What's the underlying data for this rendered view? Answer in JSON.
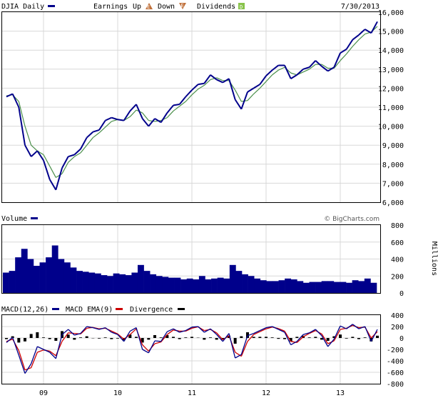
{
  "chart_data": [
    {
      "type": "line",
      "panel": "price",
      "symbol_label": "DJIA Daily",
      "date_label": "7/30/2013",
      "legend": {
        "earnings_label": "Earnings",
        "up_label": "Up",
        "down_label": "Down",
        "dividends_label": "Dividends",
        "up_badge": "E",
        "down_badge": "E",
        "dividends_badge": "D"
      },
      "ylim": [
        6000,
        16000
      ],
      "y_ticks": [
        "6,000",
        "7,000",
        "8,000",
        "9,000",
        "10,000",
        "11,000",
        "12,000",
        "13,000",
        "14,000",
        "15,000",
        "16,000"
      ],
      "series": [
        {
          "color": "#00008b",
          "x": [
            "2008-07",
            "2008-08",
            "2008-09",
            "2008-10",
            "2008-11",
            "2008-12",
            "2009-01",
            "2009-02",
            "2009-03",
            "2009-04",
            "2009-05",
            "2009-06",
            "2009-07",
            "2009-08",
            "2009-09",
            "2009-10",
            "2009-11",
            "2009-12",
            "2010-01",
            "2010-02",
            "2010-03",
            "2010-04",
            "2010-05",
            "2010-06",
            "2010-07",
            "2010-08",
            "2010-09",
            "2010-10",
            "2010-11",
            "2010-12",
            "2011-01",
            "2011-02",
            "2011-03",
            "2011-04",
            "2011-05",
            "2011-06",
            "2011-07",
            "2011-08",
            "2011-09",
            "2011-10",
            "2011-11",
            "2011-12",
            "2012-01",
            "2012-02",
            "2012-03",
            "2012-04",
            "2012-05",
            "2012-06",
            "2012-07",
            "2012-08",
            "2012-09",
            "2012-10",
            "2012-11",
            "2012-12",
            "2013-01",
            "2013-02",
            "2013-03",
            "2013-04",
            "2013-05",
            "2013-06",
            "2013-07"
          ],
          "values": [
            11550,
            11700,
            11000,
            9000,
            8400,
            8700,
            8200,
            7200,
            6650,
            7800,
            8400,
            8500,
            8800,
            9400,
            9700,
            9800,
            10300,
            10450,
            10350,
            10300,
            10800,
            11150,
            10400,
            10000,
            10400,
            10200,
            10700,
            11100,
            11150,
            11550,
            11900,
            12200,
            12250,
            12700,
            12450,
            12300,
            12500,
            11400,
            10900,
            11800,
            12000,
            12200,
            12650,
            12950,
            13200,
            13200,
            12500,
            12700,
            13000,
            13100,
            13450,
            13150,
            12900,
            13100,
            13850,
            14050,
            14550,
            14800,
            15100,
            14900,
            15500
          ]
        },
        {
          "color": "#4a8f4a",
          "x": [
            "2008-07",
            "2008-08",
            "2008-09",
            "2008-10",
            "2008-11",
            "2008-12",
            "2009-01",
            "2009-02",
            "2009-03",
            "2009-04",
            "2009-05",
            "2009-06",
            "2009-07",
            "2009-08",
            "2009-09",
            "2009-10",
            "2009-11",
            "2009-12",
            "2010-01",
            "2010-02",
            "2010-03",
            "2010-04",
            "2010-05",
            "2010-06",
            "2010-07",
            "2010-08",
            "2010-09",
            "2010-10",
            "2010-11",
            "2010-12",
            "2011-01",
            "2011-02",
            "2011-03",
            "2011-04",
            "2011-05",
            "2011-06",
            "2011-07",
            "2011-08",
            "2011-09",
            "2011-10",
            "2011-11",
            "2011-12",
            "2012-01",
            "2012-02",
            "2012-03",
            "2012-04",
            "2012-05",
            "2012-06",
            "2012-07",
            "2012-08",
            "2012-09",
            "2012-10",
            "2012-11",
            "2012-12",
            "2013-01",
            "2013-02",
            "2013-03",
            "2013-04",
            "2013-05",
            "2013-06",
            "2013-07"
          ],
          "values": [
            11600,
            11650,
            11300,
            10000,
            9000,
            8700,
            8500,
            7900,
            7300,
            7500,
            8100,
            8400,
            8600,
            9000,
            9400,
            9650,
            9950,
            10250,
            10350,
            10300,
            10500,
            10850,
            10700,
            10300,
            10250,
            10300,
            10450,
            10800,
            11050,
            11300,
            11650,
            11950,
            12150,
            12450,
            12550,
            12400,
            12400,
            11900,
            11300,
            11350,
            11700,
            12000,
            12350,
            12700,
            12950,
            13100,
            12800,
            12700,
            12850,
            13000,
            13250,
            13250,
            13050,
            13050,
            13450,
            13800,
            14200,
            14550,
            14850,
            14950,
            15250
          ]
        }
      ]
    },
    {
      "type": "bar",
      "panel": "volume",
      "title": "Volume",
      "watermark": "© BigCharts.com",
      "unit_label": "Millions",
      "ylim": [
        0,
        800
      ],
      "y_ticks": [
        "0",
        "200",
        "400",
        "600",
        "800"
      ],
      "color": "#00008b",
      "x": [
        "2008-07",
        "2008-08",
        "2008-09",
        "2008-10",
        "2008-11",
        "2008-12",
        "2009-01",
        "2009-02",
        "2009-03",
        "2009-04",
        "2009-05",
        "2009-06",
        "2009-07",
        "2009-08",
        "2009-09",
        "2009-10",
        "2009-11",
        "2009-12",
        "2010-01",
        "2010-02",
        "2010-03",
        "2010-04",
        "2010-05",
        "2010-06",
        "2010-07",
        "2010-08",
        "2010-09",
        "2010-10",
        "2010-11",
        "2010-12",
        "2011-01",
        "2011-02",
        "2011-03",
        "2011-04",
        "2011-05",
        "2011-06",
        "2011-07",
        "2011-08",
        "2011-09",
        "2011-10",
        "2011-11",
        "2011-12",
        "2012-01",
        "2012-02",
        "2012-03",
        "2012-04",
        "2012-05",
        "2012-06",
        "2012-07",
        "2012-08",
        "2012-09",
        "2012-10",
        "2012-11",
        "2012-12",
        "2013-01",
        "2013-02",
        "2013-03",
        "2013-04",
        "2013-05",
        "2013-06",
        "2013-07"
      ],
      "values": [
        240,
        260,
        420,
        520,
        400,
        320,
        360,
        420,
        560,
        400,
        360,
        300,
        260,
        250,
        240,
        230,
        210,
        200,
        230,
        220,
        210,
        240,
        330,
        260,
        220,
        200,
        190,
        180,
        180,
        160,
        170,
        160,
        200,
        160,
        170,
        180,
        170,
        330,
        260,
        220,
        200,
        170,
        150,
        140,
        140,
        150,
        170,
        160,
        140,
        120,
        130,
        130,
        140,
        140,
        130,
        130,
        120,
        150,
        140,
        170,
        120
      ]
    },
    {
      "type": "line",
      "panel": "macd",
      "ylim": [
        -800,
        400
      ],
      "y_ticks": [
        "-800",
        "-600",
        "-400",
        "-200",
        "0",
        "200",
        "400"
      ],
      "x_ticks": [
        "09",
        "10",
        "11",
        "12",
        "13"
      ],
      "legend": [
        "MACD(12,26)",
        "MACD EMA(9)",
        "Divergence"
      ],
      "series": [
        {
          "name": "MACD(12,26)",
          "color": "#00008b",
          "x": [
            "2008-07",
            "2008-08",
            "2008-09",
            "2008-10",
            "2008-11",
            "2008-12",
            "2009-01",
            "2009-02",
            "2009-03",
            "2009-04",
            "2009-05",
            "2009-06",
            "2009-07",
            "2009-08",
            "2009-09",
            "2009-10",
            "2009-11",
            "2009-12",
            "2010-01",
            "2010-02",
            "2010-03",
            "2010-04",
            "2010-05",
            "2010-06",
            "2010-07",
            "2010-08",
            "2010-09",
            "2010-10",
            "2010-11",
            "2010-12",
            "2011-01",
            "2011-02",
            "2011-03",
            "2011-04",
            "2011-05",
            "2011-06",
            "2011-07",
            "2011-08",
            "2011-09",
            "2011-10",
            "2011-11",
            "2011-12",
            "2012-01",
            "2012-02",
            "2012-03",
            "2012-04",
            "2012-05",
            "2012-06",
            "2012-07",
            "2012-08",
            "2012-09",
            "2012-10",
            "2012-11",
            "2012-12",
            "2013-01",
            "2013-02",
            "2013-03",
            "2013-04",
            "2013-05",
            "2013-06",
            "2013-07"
          ],
          "values": [
            -80,
            10,
            -300,
            -620,
            -450,
            -150,
            -200,
            -250,
            -360,
            60,
            150,
            50,
            80,
            200,
            180,
            150,
            180,
            100,
            60,
            -60,
            120,
            180,
            -200,
            -260,
            -50,
            -60,
            110,
            160,
            100,
            130,
            190,
            200,
            100,
            160,
            60,
            -60,
            80,
            -350,
            -290,
            40,
            80,
            130,
            180,
            200,
            150,
            100,
            -120,
            -60,
            60,
            90,
            150,
            40,
            -150,
            -20,
            210,
            160,
            240,
            160,
            200,
            -60,
            150
          ]
        },
        {
          "name": "MACD EMA(9)",
          "color": "#cc0000",
          "x": [
            "2008-07",
            "2008-08",
            "2008-09",
            "2008-10",
            "2008-11",
            "2008-12",
            "2009-01",
            "2009-02",
            "2009-03",
            "2009-04",
            "2009-05",
            "2009-06",
            "2009-07",
            "2009-08",
            "2009-09",
            "2009-10",
            "2009-11",
            "2009-12",
            "2010-01",
            "2010-02",
            "2010-03",
            "2010-04",
            "2010-05",
            "2010-06",
            "2010-07",
            "2010-08",
            "2010-09",
            "2010-10",
            "2010-11",
            "2010-12",
            "2011-01",
            "2011-02",
            "2011-03",
            "2011-04",
            "2011-05",
            "2011-06",
            "2011-07",
            "2011-08",
            "2011-09",
            "2011-10",
            "2011-11",
            "2011-12",
            "2012-01",
            "2012-02",
            "2012-03",
            "2012-04",
            "2012-05",
            "2012-06",
            "2012-07",
            "2012-08",
            "2012-09",
            "2012-10",
            "2012-11",
            "2012-12",
            "2013-01",
            "2013-02",
            "2013-03",
            "2013-04",
            "2013-05",
            "2013-06",
            "2013-07"
          ],
          "values": [
            -60,
            -20,
            -220,
            -560,
            -520,
            -250,
            -210,
            -230,
            -310,
            -60,
            90,
            80,
            70,
            170,
            185,
            160,
            170,
            120,
            70,
            -20,
            60,
            160,
            -120,
            -230,
            -100,
            -70,
            60,
            140,
            120,
            120,
            170,
            195,
            130,
            150,
            90,
            -30,
            40,
            -250,
            -320,
            -60,
            60,
            110,
            160,
            190,
            165,
            120,
            -60,
            -80,
            20,
            80,
            130,
            70,
            -100,
            -50,
            150,
            170,
            220,
            180,
            190,
            0,
            110
          ]
        },
        {
          "name": "Divergence",
          "color": "#000000",
          "x": [
            "2008-07",
            "2008-08",
            "2008-09",
            "2008-10",
            "2008-11",
            "2008-12",
            "2009-01",
            "2009-02",
            "2009-03",
            "2009-04",
            "2009-05",
            "2009-06",
            "2009-07",
            "2009-08",
            "2009-09",
            "2009-10",
            "2009-11",
            "2009-12",
            "2010-01",
            "2010-02",
            "2010-03",
            "2010-04",
            "2010-05",
            "2010-06",
            "2010-07",
            "2010-08",
            "2010-09",
            "2010-10",
            "2010-11",
            "2010-12",
            "2011-01",
            "2011-02",
            "2011-03",
            "2011-04",
            "2011-05",
            "2011-06",
            "2011-07",
            "2011-08",
            "2011-09",
            "2011-10",
            "2011-11",
            "2011-12",
            "2012-01",
            "2012-02",
            "2012-03",
            "2012-04",
            "2012-05",
            "2012-06",
            "2012-07",
            "2012-08",
            "2012-09",
            "2012-10",
            "2012-11",
            "2012-12",
            "2013-01",
            "2013-02",
            "2013-03",
            "2013-04",
            "2013-05",
            "2013-06",
            "2013-07"
          ],
          "values": [
            -20,
            30,
            -80,
            -60,
            70,
            100,
            10,
            -20,
            -50,
            120,
            60,
            -30,
            10,
            30,
            -5,
            -10,
            10,
            -20,
            -10,
            -40,
            60,
            20,
            -80,
            -30,
            50,
            10,
            50,
            20,
            -20,
            10,
            20,
            5,
            -30,
            10,
            -30,
            -30,
            40,
            -100,
            30,
            100,
            20,
            20,
            20,
            10,
            -15,
            -20,
            -60,
            20,
            40,
            10,
            20,
            -30,
            -50,
            30,
            60,
            -10,
            20,
            -20,
            10,
            -60,
            40
          ]
        }
      ]
    }
  ]
}
